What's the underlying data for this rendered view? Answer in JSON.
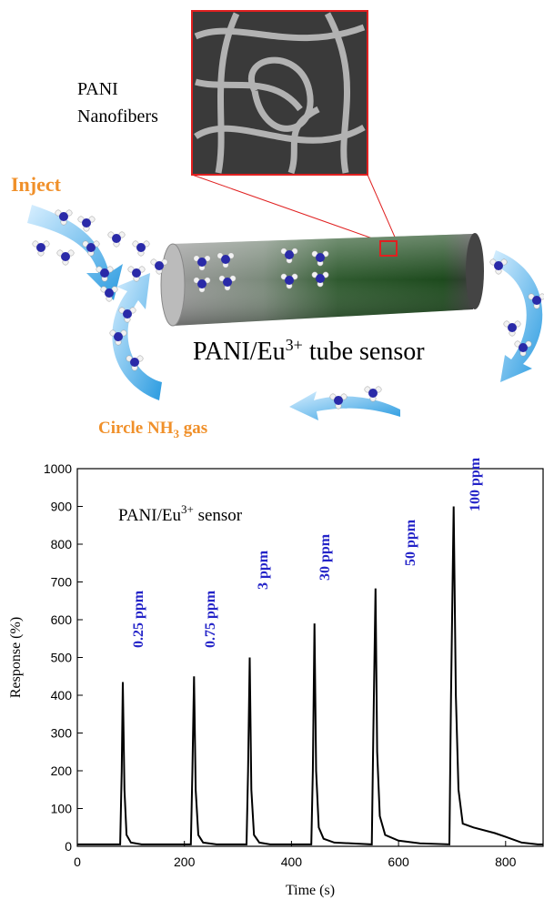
{
  "diagram": {
    "sem_label": [
      "PANI",
      "Nanofibers"
    ],
    "inject": "Inject",
    "tube_label": {
      "text": "PANI/Eu",
      "sup": "3+",
      "rest": " tube sensor"
    },
    "circle_label": {
      "text": "Circle NH",
      "sub": "3",
      "rest": " gas"
    }
  },
  "chart_data": {
    "type": "line",
    "xlabel": "Time (s)",
    "ylabel": "Response (%)",
    "annotation": {
      "text": "PANI/Eu",
      "sup": "3+",
      "rest": " sensor"
    },
    "peak_labels": [
      "0.25 ppm",
      "0.75 ppm",
      "3 ppm",
      "30 ppm",
      "50 ppm",
      "100 ppm"
    ],
    "xlim": [
      0,
      870
    ],
    "ylim": [
      0,
      1000
    ],
    "xticks": [
      0,
      200,
      400,
      600,
      800
    ],
    "yticks": [
      0,
      100,
      200,
      300,
      400,
      500,
      600,
      700,
      800,
      900,
      1000
    ],
    "x": [
      0,
      80,
      83,
      85,
      88,
      92,
      100,
      120,
      212,
      215,
      218,
      221,
      226,
      235,
      260,
      316,
      319,
      322,
      325,
      330,
      340,
      360,
      437,
      440,
      443,
      446,
      451,
      460,
      480,
      550,
      553,
      557,
      560,
      565,
      575,
      600,
      640,
      695,
      698,
      703,
      707,
      712,
      720,
      740,
      780,
      800,
      830,
      860,
      870
    ],
    "series": [
      {
        "color": "#000000",
        "values": [
          5,
          5,
          200,
          435,
          150,
          30,
          10,
          5,
          5,
          200,
          450,
          150,
          30,
          10,
          5,
          5,
          200,
          500,
          150,
          30,
          10,
          5,
          5,
          200,
          590,
          200,
          50,
          20,
          10,
          5,
          300,
          683,
          250,
          80,
          30,
          15,
          8,
          5,
          400,
          900,
          400,
          150,
          60,
          50,
          35,
          25,
          10,
          5,
          5
        ]
      }
    ]
  }
}
